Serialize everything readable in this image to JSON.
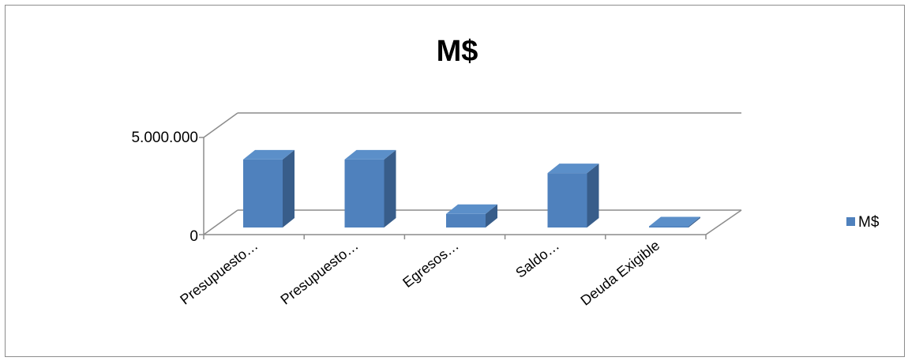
{
  "chart_data": {
    "type": "bar",
    "title": "M$",
    "categories": [
      "Presupuesto…",
      "Presupuesto…",
      "Egresos…",
      "Saldo…",
      "Deuda Exigible"
    ],
    "series": [
      {
        "name": "M$",
        "values": [
          3500000,
          3500000,
          700000,
          2800000,
          10000
        ]
      }
    ],
    "yticks": [
      0,
      5000000
    ],
    "ytick_labels": [
      "0",
      "5.000.000"
    ],
    "ylim": [
      0,
      5000000
    ],
    "legend": "right",
    "bar_style": "3d-column",
    "colors": {
      "front": "#4f81bd",
      "top": "#5b8fc9",
      "side": "#385d8a"
    }
  }
}
